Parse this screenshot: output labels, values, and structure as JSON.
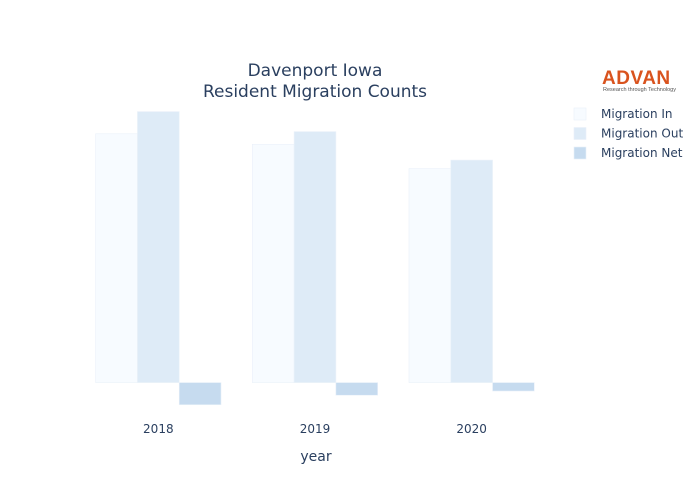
{
  "chart_data": {
    "type": "bar",
    "title_lines": [
      "Davenport Iowa",
      "Resident Migration Counts"
    ],
    "xlabel": "year",
    "ylabel": "",
    "categories": [
      "2018",
      "2019",
      "2020"
    ],
    "series": [
      {
        "name": "Migration In",
        "values": [
          11800,
          11300,
          10150
        ],
        "color": "#f7fbff"
      },
      {
        "name": "Migration Out",
        "values": [
          12850,
          11900,
          10550
        ],
        "color": "#deebf7"
      },
      {
        "name": "Migration Net",
        "values": [
          -1050,
          -600,
          -400
        ],
        "color": "#c6dbef"
      }
    ],
    "ylim": [
      -1300,
      13400
    ],
    "grid": false,
    "legend_position": "top-right"
  },
  "logo": {
    "name": "ADVAN",
    "tagline": "Research through Technology",
    "color": "#d9531e"
  }
}
